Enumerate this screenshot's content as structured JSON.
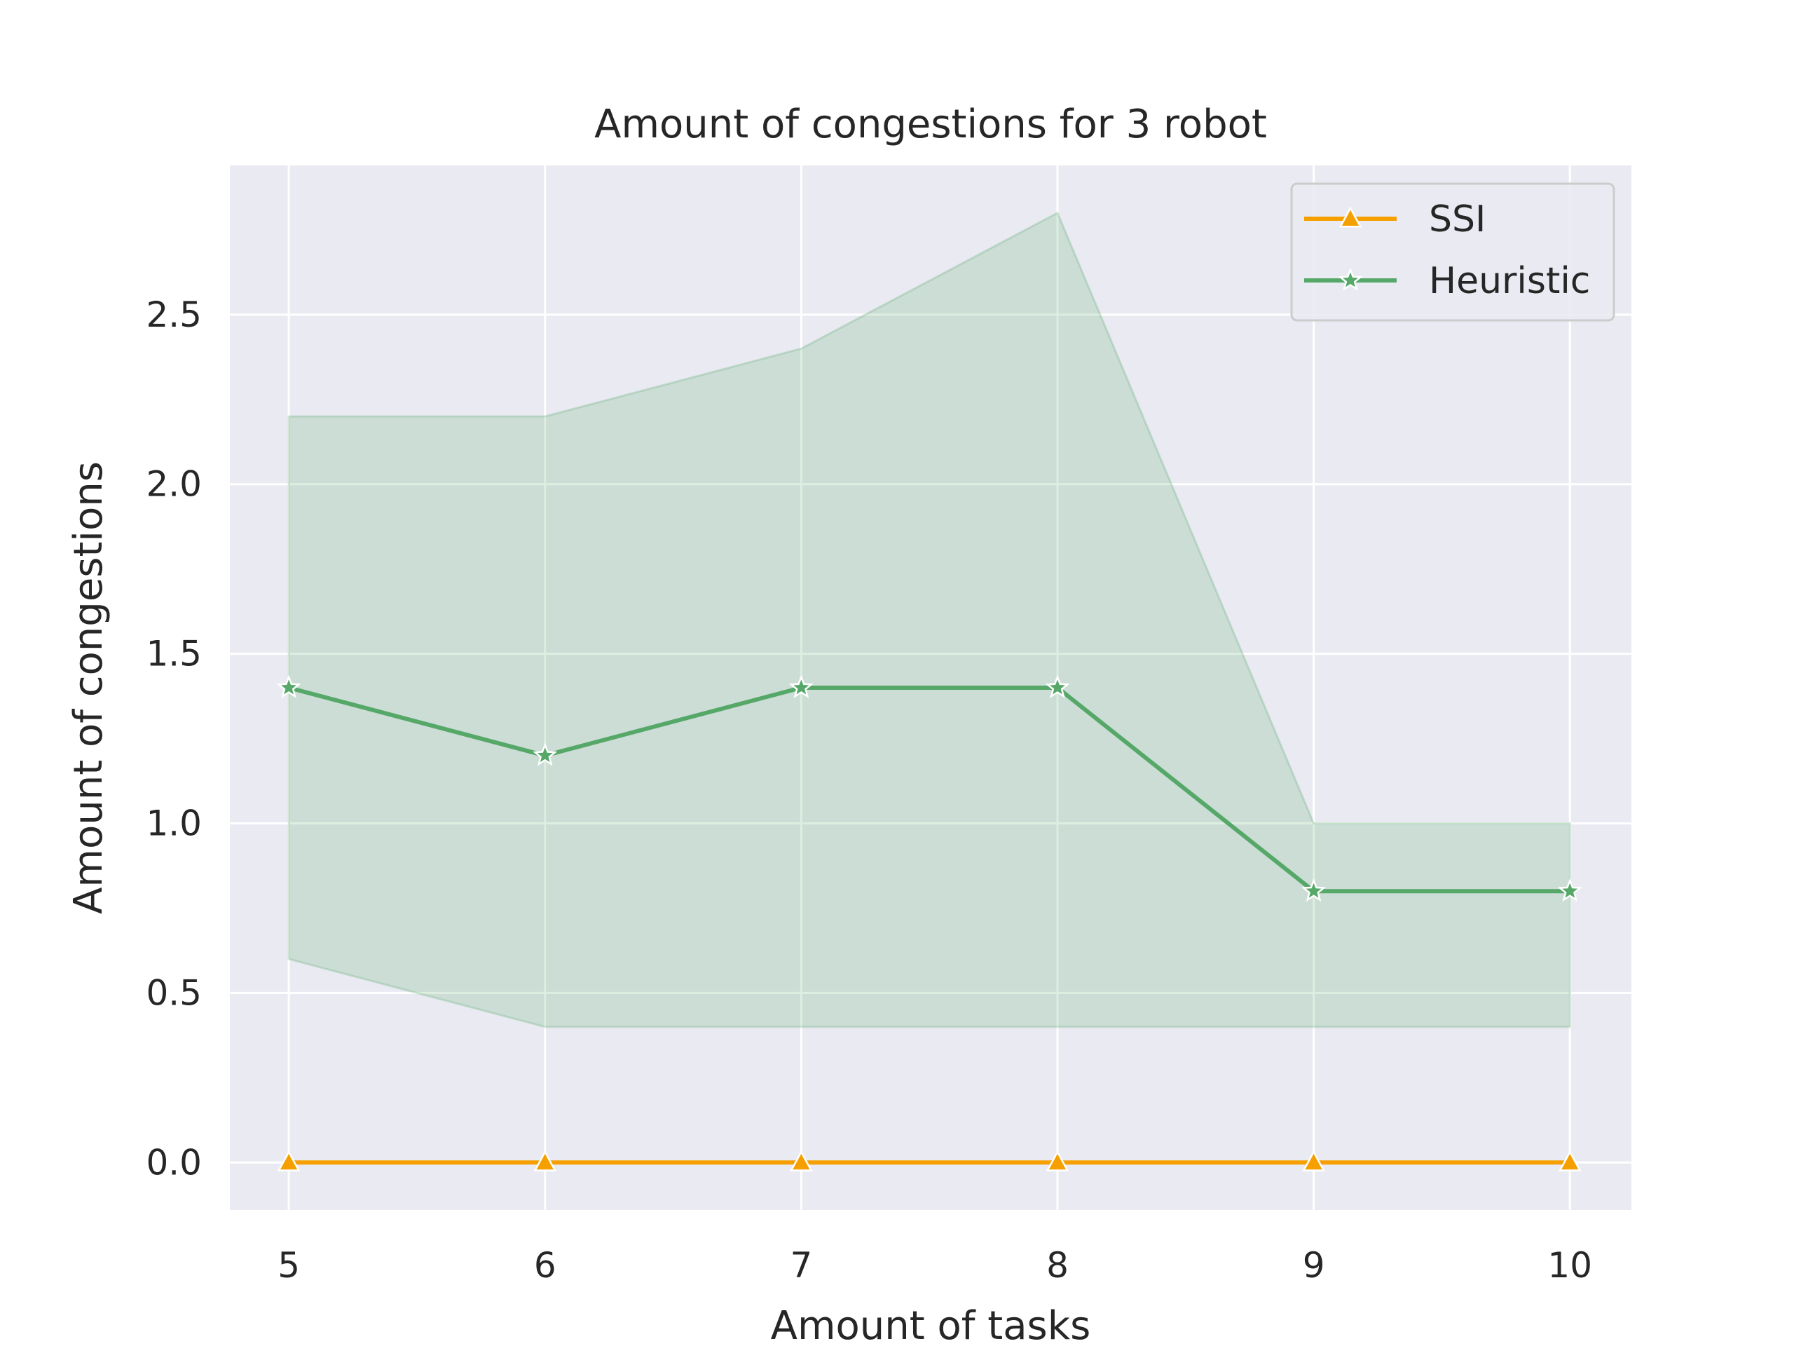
{
  "chart_data": {
    "type": "line",
    "title": "Amount of congestions for 3 robot",
    "xlabel": "Amount of tasks",
    "ylabel": "Amount of congestions",
    "x": [
      5,
      6,
      7,
      8,
      9,
      10
    ],
    "xlim": [
      4.77,
      10.24
    ],
    "ylim": [
      -0.14,
      2.94
    ],
    "xticks": [
      "5",
      "6",
      "7",
      "8",
      "9",
      "10"
    ],
    "yticks": [
      {
        "value": 0.0,
        "label": "0.0"
      },
      {
        "value": 0.5,
        "label": "0.5"
      },
      {
        "value": 1.0,
        "label": "1.0"
      },
      {
        "value": 1.5,
        "label": "1.5"
      },
      {
        "value": 2.0,
        "label": "2.0"
      },
      {
        "value": 2.5,
        "label": "2.5"
      }
    ],
    "grid": true,
    "background": "#eaeaf2",
    "legend": "top-right",
    "series": [
      {
        "name": "SSI",
        "color": "#f5a000",
        "marker": "triangle",
        "values": [
          0,
          0,
          0,
          0,
          0,
          0
        ]
      },
      {
        "name": "Heuristic",
        "color": "#55a868",
        "marker": "star",
        "values": [
          1.4,
          1.2,
          1.4,
          1.4,
          0.8,
          0.8
        ],
        "band_lower": [
          0.6,
          0.4,
          0.4,
          0.4,
          0.4,
          0.4
        ],
        "band_upper": [
          2.2,
          2.2,
          2.4,
          2.8,
          1.0,
          1.0
        ],
        "band_color": "#55a868"
      }
    ]
  }
}
